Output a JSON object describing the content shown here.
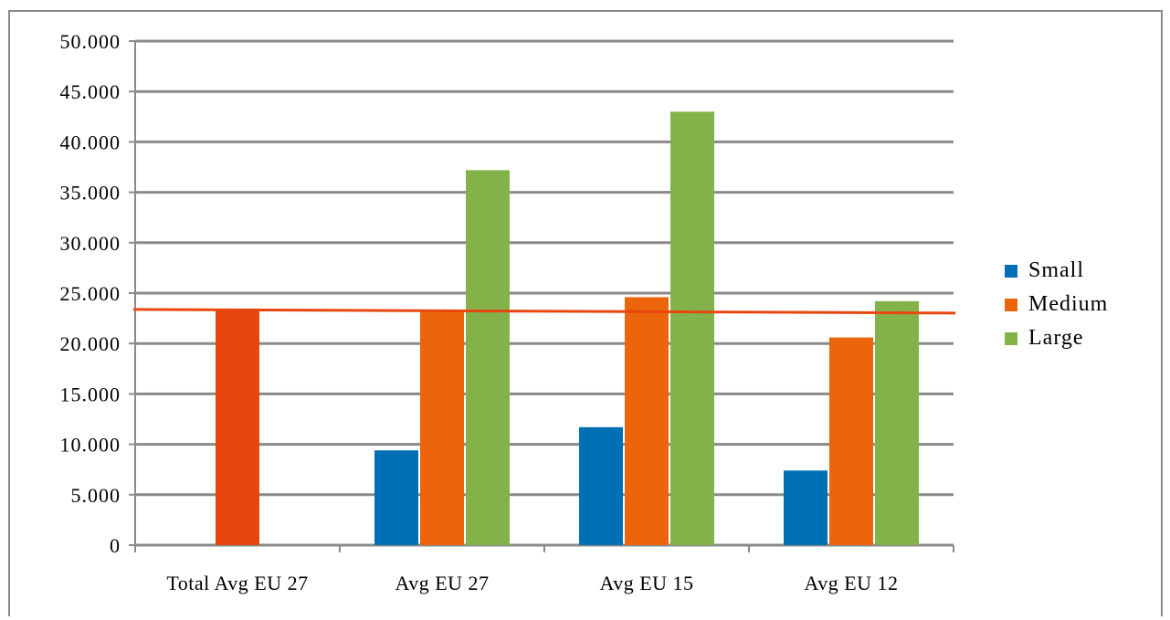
{
  "header_fragment": "",
  "chart_data": {
    "type": "bar",
    "categories": [
      "Total Avg EU 27",
      "Avg EU 27",
      "Avg EU 15",
      "Avg EU 12"
    ],
    "series": [
      {
        "name": "Small",
        "color": "#0070b5",
        "values": [
          null,
          9400,
          11700,
          7400
        ]
      },
      {
        "name": "Medium",
        "color": "#ec650c",
        "values": [
          23300,
          23200,
          24600,
          20600
        ]
      },
      {
        "name": "Large",
        "color": "#84b24a",
        "values": [
          null,
          37200,
          43000,
          24200
        ]
      }
    ],
    "special_bar_color": "#e8460f",
    "reference_line": {
      "value": 23200,
      "color": "#e8460f"
    },
    "ylim": [
      0,
      50000
    ],
    "ytick_labels": [
      "0",
      "5.000",
      "10.000",
      "15.000",
      "20.000",
      "25.000",
      "30.000",
      "35.000",
      "40.000",
      "45.000",
      "50.000"
    ],
    "grid": true,
    "legend_position": "right",
    "title": "",
    "xlabel": "",
    "ylabel": ""
  }
}
